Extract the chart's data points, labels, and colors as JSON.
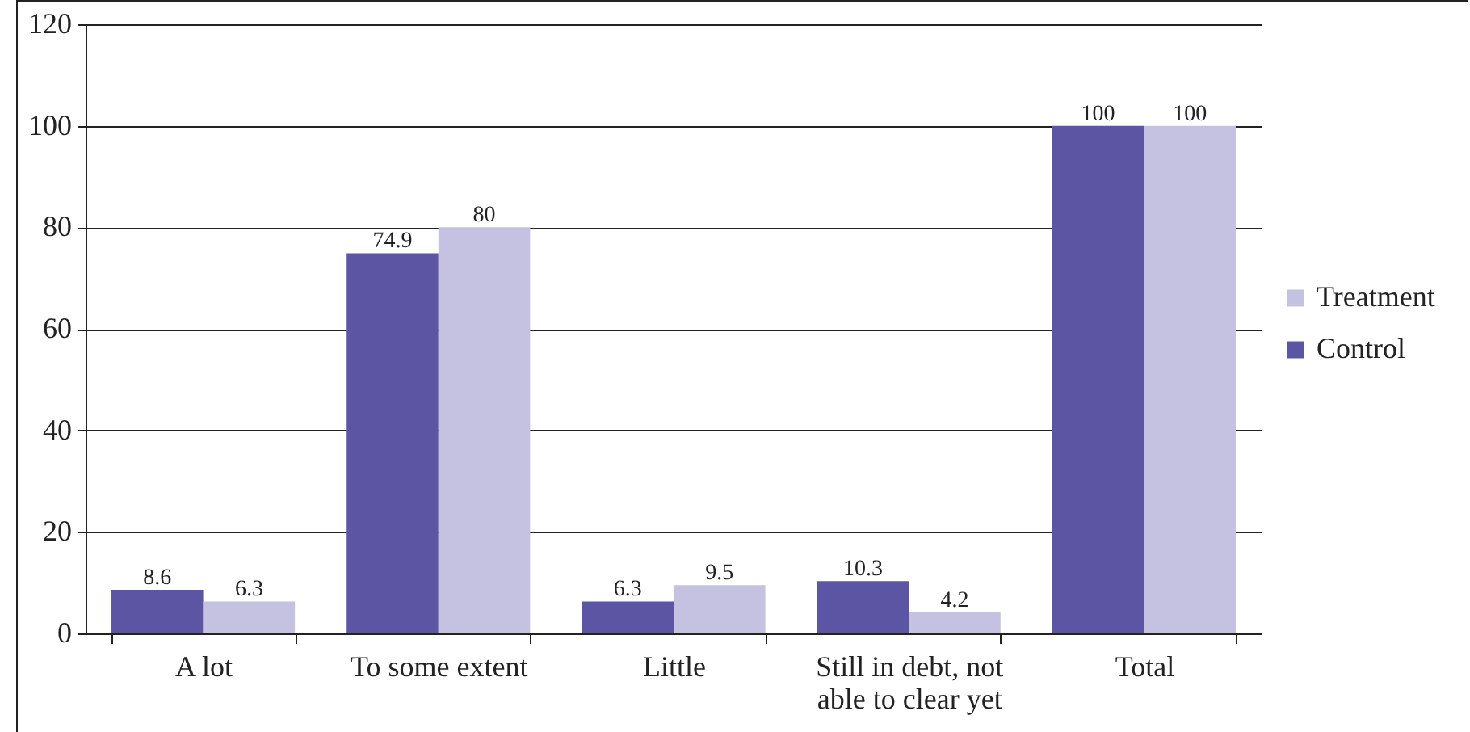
{
  "chart_data": {
    "type": "bar",
    "categories": [
      "A lot",
      "To some extent",
      "Little",
      "Still in debt, not able to clear yet",
      "Total"
    ],
    "series": [
      {
        "name": "Control",
        "color": "#5b55a3",
        "values": [
          8.6,
          74.9,
          6.3,
          10.3,
          100
        ]
      },
      {
        "name": "Treatment",
        "color": "#c5c1e0",
        "values": [
          6.3,
          80,
          9.5,
          4.2,
          100
        ]
      }
    ],
    "ylim": [
      0,
      120
    ],
    "yticks": [
      0,
      20,
      40,
      60,
      80,
      100,
      120
    ],
    "grid": "y",
    "legend": "right",
    "data_labels": true
  }
}
